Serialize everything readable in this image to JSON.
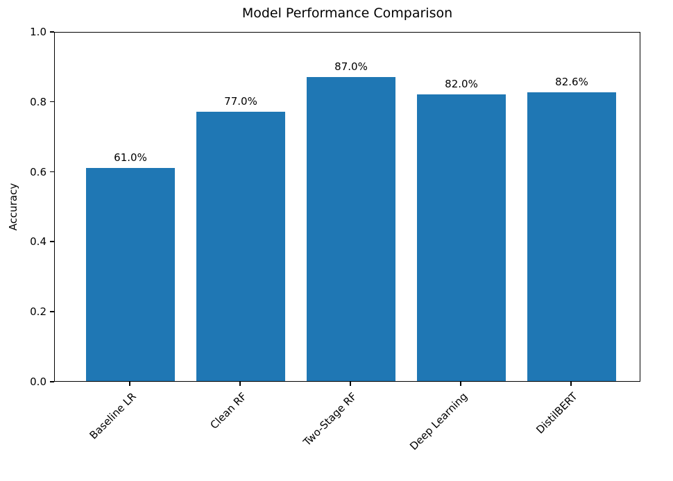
{
  "chart_data": {
    "type": "bar",
    "title": "Model Performance Comparison",
    "xlabel": "",
    "ylabel": "Accuracy",
    "categories": [
      "Baseline LR",
      "Clean RF",
      "Two-Stage RF",
      "Deep Learning",
      "DistilBERT"
    ],
    "values": [
      0.61,
      0.77,
      0.87,
      0.82,
      0.826
    ],
    "bar_labels": [
      "61.0%",
      "77.0%",
      "87.0%",
      "82.0%",
      "82.6%"
    ],
    "ylim": [
      0.0,
      1.0
    ],
    "yticks": [
      "0.0",
      "0.2",
      "0.4",
      "0.6",
      "0.8",
      "1.0"
    ],
    "ytick_values": [
      0.0,
      0.2,
      0.4,
      0.6,
      0.8,
      1.0
    ],
    "xtick_rotation_degrees": 45,
    "bar_color": "#1f77b4",
    "axis_color": "#000000",
    "background_color": "#ffffff",
    "grid": false,
    "legend": false
  }
}
